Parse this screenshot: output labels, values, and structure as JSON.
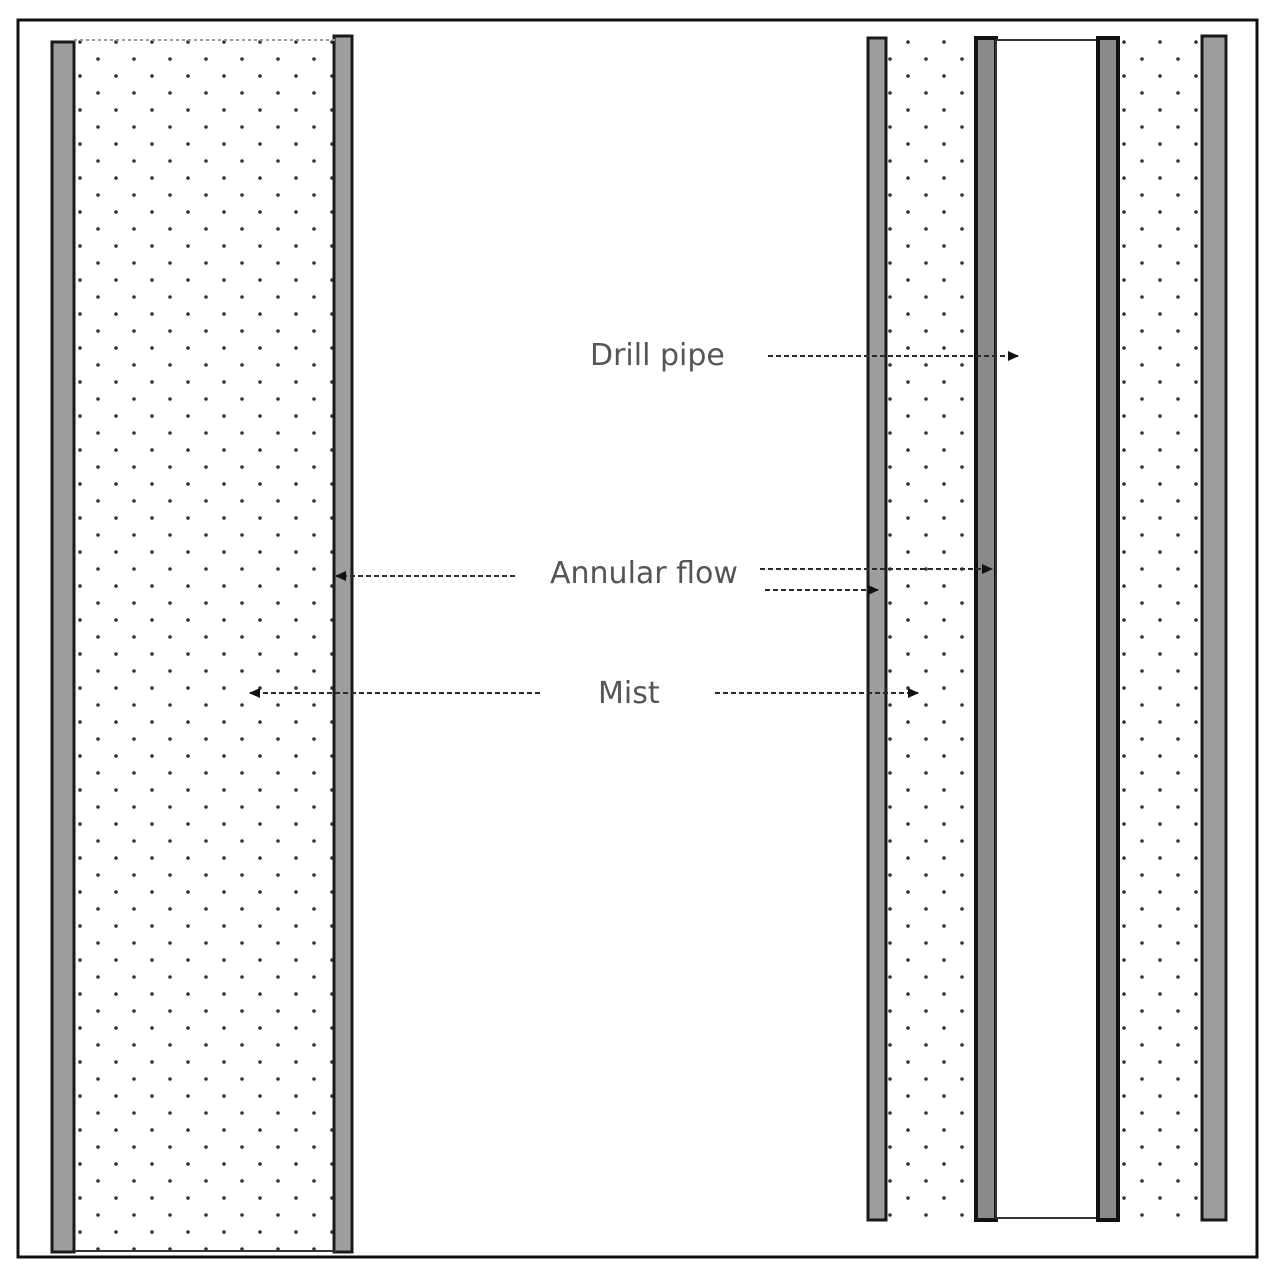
{
  "labels": {
    "drill_pipe": "Drill pipe",
    "annular_flow": "Annular flow",
    "mist": "Mist"
  },
  "colors": {
    "wall": "#9e9e9e",
    "outline": "#111111",
    "dots": "#333333",
    "text": "#555555"
  }
}
